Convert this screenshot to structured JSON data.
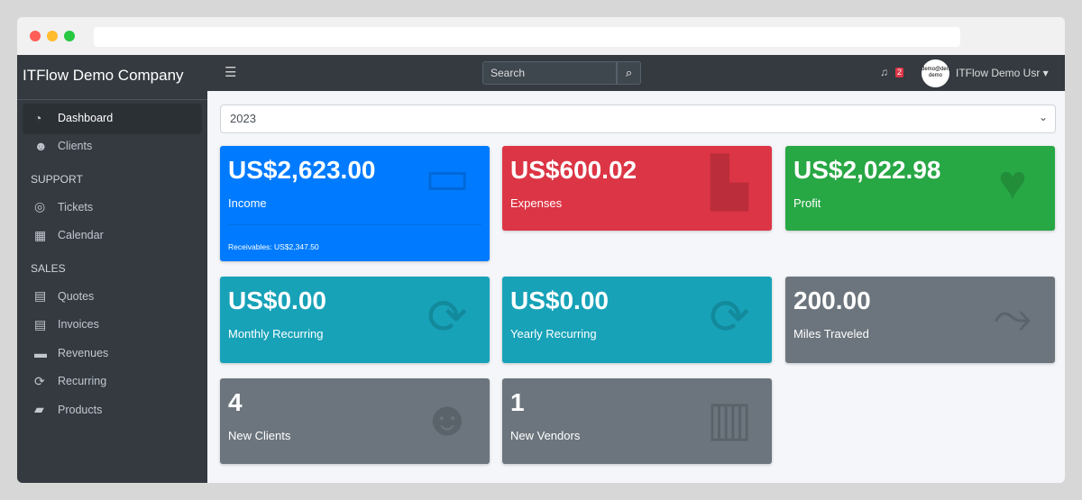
{
  "sidebar": {
    "brand": "ITFlow Demo Company",
    "items": [
      {
        "label": "Dashboard",
        "icon": "gauge-icon"
      },
      {
        "label": "Clients",
        "icon": "users-icon"
      }
    ],
    "support_header": "SUPPORT",
    "support": [
      {
        "label": "Tickets",
        "icon": "life-ring-icon"
      },
      {
        "label": "Calendar",
        "icon": "calendar-icon"
      }
    ],
    "sales_header": "SALES",
    "sales": [
      {
        "label": "Quotes",
        "icon": "quote-file-icon"
      },
      {
        "label": "Invoices",
        "icon": "invoice-icon"
      },
      {
        "label": "Revenues",
        "icon": "credit-card-icon"
      },
      {
        "label": "Recurring",
        "icon": "sync-icon"
      },
      {
        "label": "Products",
        "icon": "box-icon"
      }
    ]
  },
  "topnav": {
    "search_placeholder": "Search",
    "notifications": "2",
    "avatar_text": "demo@demo demo",
    "user": "ITFlow Demo Usr"
  },
  "year": "2023",
  "cards": [
    {
      "value": "US$2,623.00",
      "label": "Income",
      "footer": "Receivables: US$2,347.50",
      "color": "#007bff"
    },
    {
      "value": "US$600.02",
      "label": "Expenses",
      "color": "#dc3545"
    },
    {
      "value": "US$2,022.98",
      "label": "Profit",
      "color": "#28a745"
    },
    {
      "value": "US$0.00",
      "label": "Monthly Recurring",
      "color": "#17a2b8"
    },
    {
      "value": "US$0.00",
      "label": "Yearly Recurring",
      "color": "#17a2b8"
    },
    {
      "value": "200.00",
      "label": "Miles Traveled",
      "color": "#6c757d"
    },
    {
      "value": "4",
      "label": "New Clients",
      "color": "#6c757d"
    },
    {
      "value": "1",
      "label": "New Vendors",
      "color": "#6c757d"
    }
  ]
}
